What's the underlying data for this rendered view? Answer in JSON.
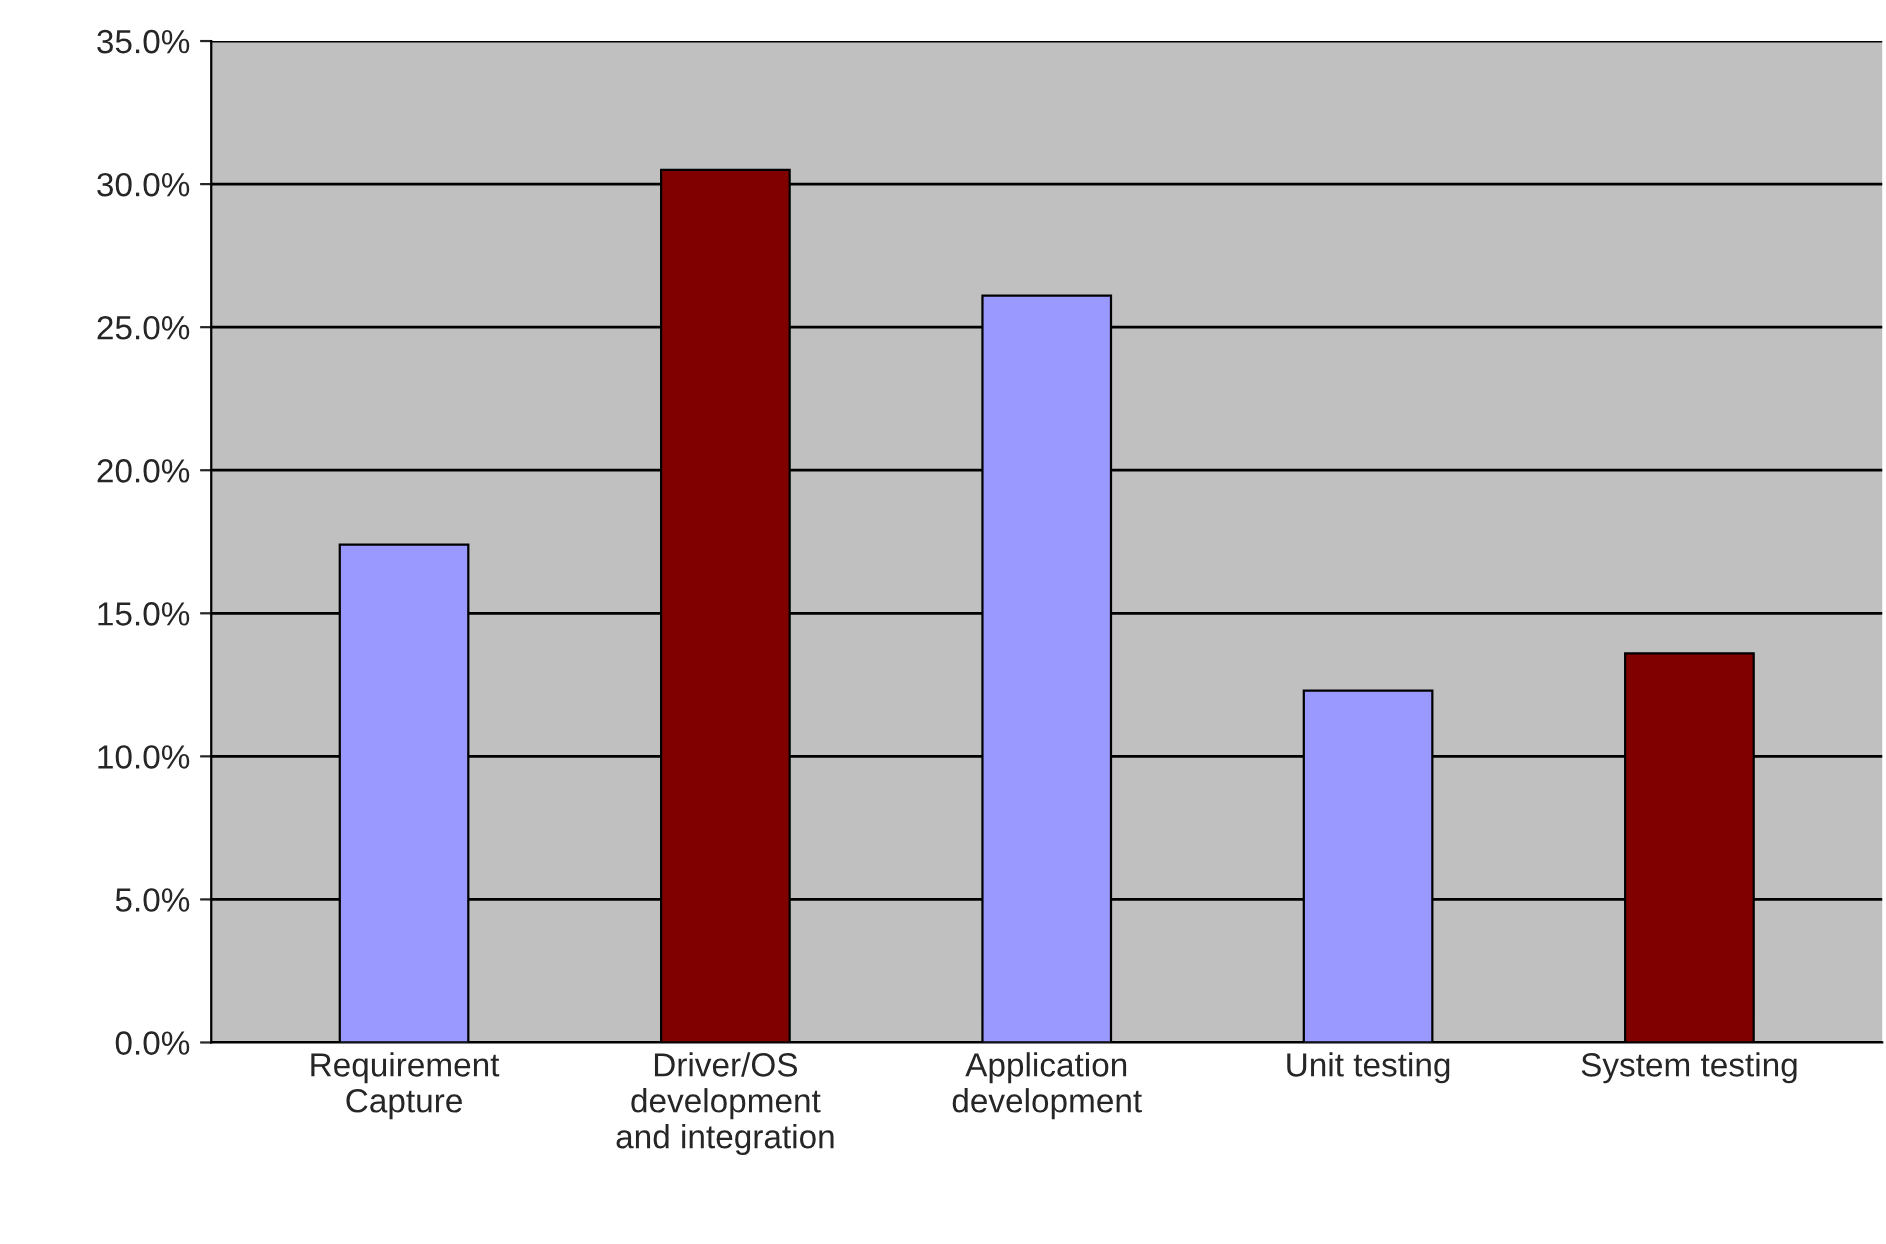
{
  "chart_data": {
    "type": "bar",
    "categories": [
      "Requirement\nCapture",
      "Driver/OS\ndevelopment\nand integration",
      "Application\ndevelopment",
      "Unit testing",
      "System testing"
    ],
    "values": [
      17.4,
      30.5,
      26.1,
      12.3,
      13.6
    ],
    "colors": [
      "#9999ff",
      "#800000",
      "#9999ff",
      "#9999ff",
      "#800000"
    ],
    "ylim": [
      0,
      35
    ],
    "yticks": [
      {
        "value": 0,
        "label": "0.0%"
      },
      {
        "value": 5,
        "label": "5.0%"
      },
      {
        "value": 10,
        "label": "10.0%"
      },
      {
        "value": 15,
        "label": "15.0%"
      },
      {
        "value": 20,
        "label": "20.0%"
      },
      {
        "value": 25,
        "label": "25.0%"
      },
      {
        "value": 30,
        "label": "30.0%"
      },
      {
        "value": 35,
        "label": "35.0%"
      }
    ],
    "grid": "y"
  }
}
